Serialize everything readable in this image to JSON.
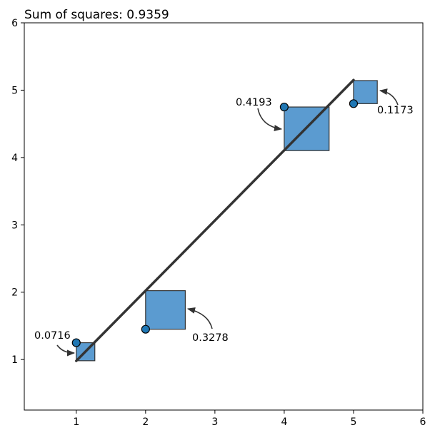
{
  "chart_data": {
    "type": "scatter",
    "title": "Sum of squares: 0.9359",
    "xlabel": "",
    "ylabel": "",
    "xlim": [
      0.25,
      6
    ],
    "ylim": [
      0.25,
      6
    ],
    "x_ticks": [
      1,
      2,
      3,
      4,
      5,
      6
    ],
    "y_ticks": [
      1,
      2,
      3,
      4,
      5,
      6
    ],
    "grid": false,
    "line": {
      "x": [
        1,
        5
      ],
      "y": [
        0.98,
        5.15
      ],
      "color": "#333333"
    },
    "points": [
      {
        "x": 1,
        "y": 1.25,
        "square_value": 0.0716,
        "label": "0.0716"
      },
      {
        "x": 2,
        "y": 1.45,
        "square_value": 0.3278,
        "label": "0.3278"
      },
      {
        "x": 4,
        "y": 4.75,
        "square_value": 0.4193,
        "label": "0.4193"
      },
      {
        "x": 5,
        "y": 4.8,
        "square_value": 0.1173,
        "label": "0.1173"
      }
    ],
    "colors": {
      "point_fill": "#1f77b4",
      "square_fill": "#5b9bd0",
      "edge": "#000000"
    }
  }
}
